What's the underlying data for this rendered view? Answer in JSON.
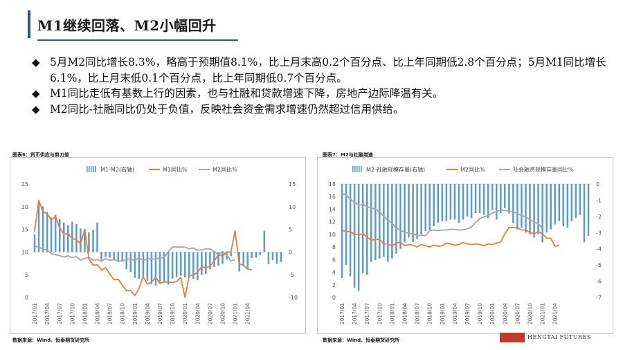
{
  "slide": {
    "title": "M1继续回落、M2小幅回升",
    "bullets": [
      "5月M2同比增长8.3%，略高于预期值8.1%，比上月末高0.2个百分点、比上年同期低2.8个百分点；5月M1同比增长6.1%，比上月末低0.1个百分点，比上年同期低0.7个百分点。",
      "M1同比走低有基数上行的因素，也与社融和贷款增速下降，房地产边际降温有关。",
      "M2同比-社融同比仍处于负值，反映社会资金需求增速仍然超过信用供给。"
    ],
    "bullet_marker": "◆",
    "logo_text": "HENGTAI FUTURES",
    "colors": {
      "accent": "#1f5f8b",
      "bar": "#5b9bd5",
      "orange": "#ed7d31",
      "gray": "#a5a5a5"
    }
  },
  "charts": {
    "left": {
      "label": "图表6：货币供应与剪刀差",
      "source": "数据来源：Wind、恒泰期货研究所"
    },
    "right": {
      "label": "图表7：M2与社融增速",
      "source": "数据来源：Wind、恒泰期货研究所"
    }
  },
  "chart_data": [
    {
      "type": "bar+line",
      "legend": [
        "M1-M2(右轴)",
        "M1同比%",
        "M2同比%"
      ],
      "legend_position": "top",
      "x_ticks": [
        "2017/01",
        "2017/04",
        "2017/07",
        "2017/10",
        "2018/01",
        "2018/04",
        "2018/07",
        "2018/10",
        "2019/01",
        "2019/04",
        "2019/07",
        "2019/10",
        "2020/01",
        "2020/04",
        "2020/07",
        "2020/10",
        "2021/01",
        "2021/04"
      ],
      "y_left": {
        "ticks": [
          0,
          5,
          10,
          15,
          20,
          25
        ],
        "lim": [
          0,
          25
        ]
      },
      "y_right": {
        "ticks": [
          -10,
          -5,
          0,
          5,
          10,
          15
        ],
        "lim": [
          -10,
          15
        ]
      },
      "series": [
        {
          "name": "M1-M2(右轴)",
          "axis": "right",
          "type": "bar",
          "values": [
            3.9,
            10.8,
            10.1,
            8.8,
            7.6,
            8.2,
            7.2,
            6.5,
            5.9,
            6.7,
            6.2,
            5.2,
            5.1,
            4.4,
            4.9,
            6.5,
            -1.8,
            -1.1,
            -1.2,
            -1.8,
            -2.2,
            -2.0,
            -3.8,
            -4.4,
            -5.7,
            -5.9,
            -5.8,
            -6.3,
            -7.1,
            -7.4,
            -6.9,
            -6.6,
            -7.2,
            -5.9,
            -5.5,
            -5.2,
            -5.6,
            -5.7,
            -5.9,
            -6.2,
            -5.0,
            -4.8,
            -3.8,
            -3.3,
            -3.0,
            -2.6,
            -1.6,
            -0.9,
            -0.1,
            -4.3,
            -3.2,
            -3.8,
            -1.3,
            -1.2,
            -0.7,
            4.7,
            -2.7,
            -1.8,
            -2.6,
            -2.2
          ],
          "note": "estimated monthly values 2017/01–2021/05"
        },
        {
          "name": "M1同比%",
          "axis": "left",
          "type": "line",
          "values": [
            14.5,
            21.4,
            18.8,
            18.5,
            17.0,
            17.9,
            15.3,
            14.0,
            14.0,
            13.0,
            12.7,
            11.8,
            15.0,
            8.5,
            7.1,
            7.2,
            6.0,
            6.6,
            5.1,
            3.9,
            4.0,
            2.7,
            1.5,
            1.5,
            0.4,
            2.0,
            4.6,
            2.9,
            3.4,
            4.4,
            3.1,
            3.4,
            3.4,
            3.3,
            3.5,
            4.4,
            0.0,
            4.8,
            5.0,
            5.5,
            6.8,
            6.5,
            6.9,
            8.0,
            9.4,
            9.1,
            10.0,
            10.0,
            14.7,
            7.4,
            7.1,
            6.2,
            6.1
          ],
          "note": "estimated"
        },
        {
          "name": "M2同比%",
          "axis": "left",
          "type": "line",
          "values": [
            11.3,
            11.1,
            10.6,
            10.5,
            9.6,
            9.4,
            9.2,
            8.9,
            9.2,
            8.8,
            9.0,
            8.2,
            8.6,
            8.8,
            8.2,
            8.3,
            8.0,
            8.5,
            8.2,
            8.3,
            8.1,
            8.0,
            8.4,
            8.5,
            8.1,
            8.7,
            8.2,
            8.5,
            8.5,
            8.4,
            8.7,
            8.8,
            10.1,
            11.1,
            11.1,
            11.1,
            11.1,
            10.7,
            10.9,
            10.4,
            10.5,
            10.7,
            10.7,
            10.1,
            9.4,
            10.1,
            9.4,
            8.1,
            8.3
          ],
          "note": "estimated"
        }
      ]
    },
    {
      "type": "bar+line",
      "legend": [
        "M2-社融规模存量(右轴)",
        "M2同比%",
        "社会融资规模存量同比%"
      ],
      "legend_position": "top",
      "x_ticks": [
        "2017/01",
        "2017/04",
        "2017/07",
        "2017/10",
        "2018/01",
        "2018/04",
        "2018/07",
        "2018/10",
        "2019/01",
        "2019/04",
        "2019/07",
        "2019/10",
        "2020/01",
        "2020/04",
        "2020/07",
        "2020/10",
        "2021/01",
        "2021/04"
      ],
      "y_left": {
        "ticks": [
          0,
          2,
          4,
          6,
          8,
          10,
          12,
          14,
          16,
          18
        ],
        "lim": [
          0,
          18
        ]
      },
      "y_right": {
        "ticks": [
          -7,
          -6,
          -5,
          -4,
          -3,
          -2,
          -1,
          0
        ],
        "lim": [
          -7,
          0
        ]
      },
      "series": [
        {
          "name": "M2-社融规模存量(右轴)",
          "axis": "right",
          "type": "bar",
          "values": [
            -5.8,
            -5.0,
            -5.7,
            -6.4,
            -6.6,
            -5.5,
            -5.6,
            -4.8,
            -4.7,
            -4.6,
            -4.5,
            -4.8,
            -4.6,
            -4.3,
            -4.0,
            -3.6,
            -3.3,
            -3.6,
            -3.4,
            -3.1,
            -2.9,
            -2.9,
            -2.6,
            -2.4,
            -2.3,
            -2.3,
            -2.2,
            -2.2,
            -2.4,
            -2.2,
            -2.0,
            -2.1,
            -1.8,
            -1.8,
            -1.9,
            -2.1,
            -1.6,
            -2.2,
            -1.8,
            -1.5,
            -1.8,
            -2.4,
            -2.8,
            -2.7,
            -3.0,
            -3.1,
            -3.3,
            -3.1,
            -3.6,
            -3.0,
            -2.8,
            -2.5,
            -2.3,
            -2.6,
            -2.7,
            -2.3,
            -2.1,
            -1.9,
            -3.6,
            -3.2
          ],
          "note": "estimated"
        },
        {
          "name": "M2同比%",
          "axis": "left",
          "type": "line",
          "values": [
            10.6,
            10.5,
            10.4,
            10.1,
            9.9,
            10.1,
            9.6,
            9.1,
            9.2,
            9.2,
            8.5,
            8.5,
            8.2,
            8.6,
            8.8,
            8.2,
            8.4,
            8.3,
            8.0,
            8.4,
            8.2,
            8.0,
            8.3,
            8.1,
            8.2,
            8.6,
            8.5,
            8.3,
            8.4,
            8.7,
            8.5,
            8.4,
            8.5,
            8.4,
            8.2,
            8.5,
            8.4,
            8.6,
            8.8,
            10.1,
            11.1,
            11.1,
            11.1,
            10.7,
            10.7,
            10.3,
            10.1,
            10.4,
            10.1,
            9.4,
            9.4,
            8.1,
            8.3
          ],
          "note": "estimated"
        },
        {
          "name": "社会融资规模存量同比%",
          "axis": "left",
          "type": "line",
          "values": [
            16.4,
            16.3,
            15.6,
            15.1,
            14.6,
            14.8,
            14.4,
            14.2,
            14.0,
            13.6,
            12.9,
            12.2,
            11.8,
            11.0,
            10.7,
            10.3,
            10.2,
            10.1,
            9.8,
            9.9,
            9.8,
            10.6,
            10.7,
            10.6,
            10.7,
            10.7,
            10.8,
            10.8,
            10.7,
            10.7,
            10.9,
            11.2,
            11.9,
            12.5,
            12.8,
            13.0,
            13.4,
            13.6,
            13.9,
            13.8,
            13.7,
            13.6,
            13.3,
            13.0,
            12.8,
            12.3,
            12.0,
            11.7,
            11.0
          ]
        }
      ]
    }
  ]
}
